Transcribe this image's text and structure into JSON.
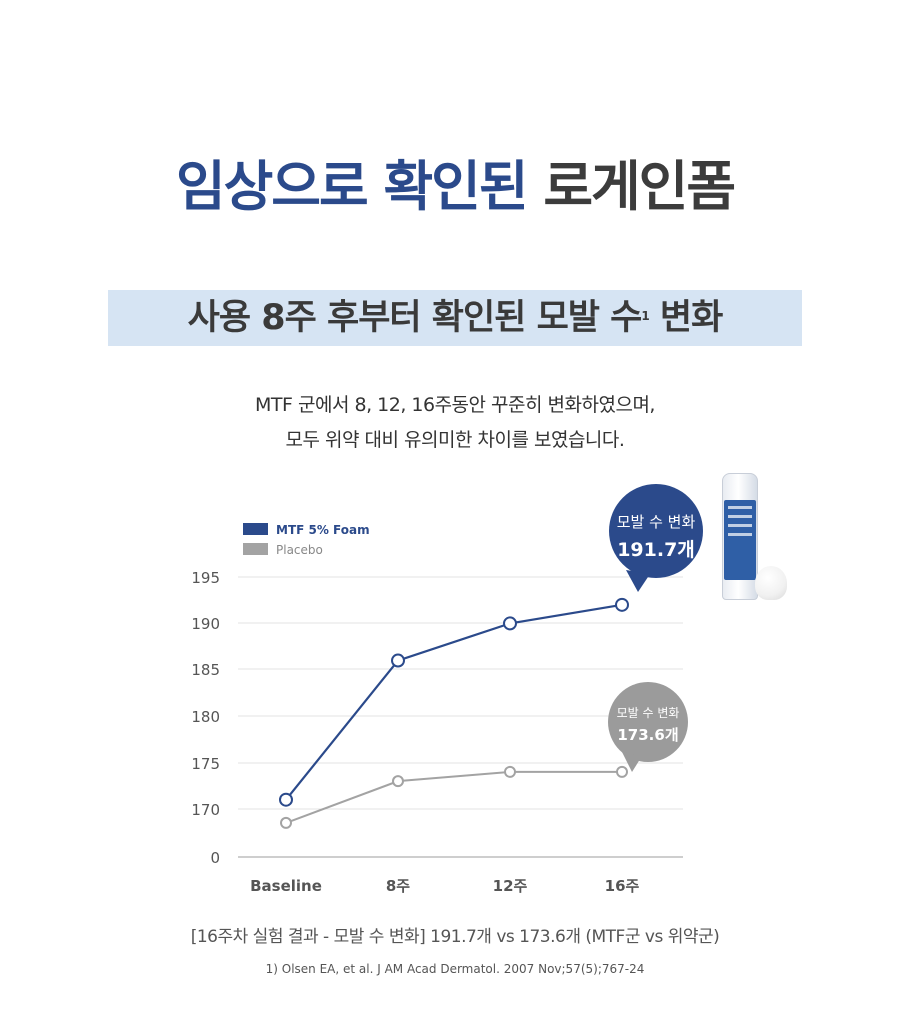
{
  "header": {
    "title_blue": "임상으로 확인된",
    "title_dark": "로게인폼",
    "subtitle_main": "사용 8주 후부터 확인된 모발 수",
    "subtitle_sup": "1",
    "subtitle_tail": "변화",
    "desc_line1": "MTF 군에서 8, 12, 16주동안 꾸준히 변화하였으며,",
    "desc_line2": "모두 위약 대비 유의미한 차이를 보였습니다."
  },
  "chart_data": {
    "type": "line",
    "categories": [
      "Baseline",
      "8주",
      "12주",
      "16주"
    ],
    "y_ticks": [
      "195",
      "190",
      "185",
      "180",
      "175",
      "170",
      "0"
    ],
    "series": [
      {
        "name": "MTF 5% Foam",
        "values": [
          171,
          186,
          190,
          192
        ],
        "color": "#2b4a8b"
      },
      {
        "name": "Placebo",
        "values": [
          168.5,
          173,
          174,
          174
        ],
        "color": "#a3a3a3"
      }
    ],
    "annotations": {
      "mtf_label": "모발 수 변화",
      "mtf_value": "191.7개",
      "placebo_label": "모발 수 변화",
      "placebo_value": "173.6개"
    },
    "legend_position": "top-left",
    "grid": true
  },
  "caption": "[16주차 실험 결과 - 모발 수 변화] 191.7개 vs 173.6개 (MTF군 vs 위약군)",
  "footnote": "1) Olsen EA, et al. J AM Acad Dermatol. 2007 Nov;57(5);767-24"
}
